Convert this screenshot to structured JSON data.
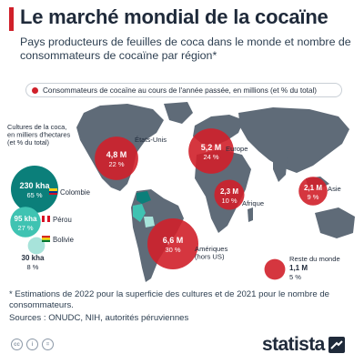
{
  "header": {
    "title": "Le marché mondial de la cocaïne",
    "subtitle": "Pays producteurs de feuilles de coca dans le monde et nombre de consommateurs de cocaïne par région*"
  },
  "legend": {
    "consumers_label": "Consommateurs de cocaïne au cours de l'année passée, en millions (et % du total)"
  },
  "colors": {
    "consumer": "#d0202a",
    "producer_dark": "#0b7f7a",
    "producer_mid": "#3fc3b2",
    "producer_light": "#a7e3da",
    "map": "#5f6b78",
    "brand": "#1f2a3a"
  },
  "chart_data": {
    "type": "bubble-map",
    "consumers": {
      "label": "Consommateurs de cocaïne au cours de l'année passée, en millions (et % du total)",
      "regions": [
        {
          "region": "États-Unis",
          "value_label": "4,8 M",
          "value": 4.8,
          "pct_label": "22 %"
        },
        {
          "region": "Europe",
          "value_label": "5,2 M",
          "value": 5.2,
          "pct_label": "24 %"
        },
        {
          "region": "Afrique",
          "value_label": "2,3 M",
          "value": 2.3,
          "pct_label": "10 %"
        },
        {
          "region": "Asie",
          "value_label": "2,1 M",
          "value": 2.1,
          "pct_label": "9 %"
        },
        {
          "region": "Amériques\n(hors US)",
          "value_label": "6,6 M",
          "value": 6.6,
          "pct_label": "30 %"
        },
        {
          "region": "Reste du monde",
          "value_label": "1,1 M",
          "value": 1.1,
          "pct_label": "5 %"
        }
      ]
    },
    "producers": {
      "label": "Cultures de la coca,\nen milliers d'hectares\n(et % du total)",
      "countries": [
        {
          "country": "Colombie",
          "value_label": "230 kha",
          "value": 230,
          "pct_label": "65 %"
        },
        {
          "country": "Pérou",
          "value_label": "95 kha",
          "value": 95,
          "pct_label": "27 %"
        },
        {
          "country": "Bolivie",
          "value_label": "30 kha",
          "value": 30,
          "pct_label": "8 %"
        }
      ]
    }
  },
  "footer": {
    "footnote": "* Estimations de 2022 pour la superficie des cultures et de 2021 pour le nombre de consommateurs.",
    "sources": "Sources : ONUDC, NIH, autorités péruviennes",
    "license_icons": [
      "cc-icon",
      "by-icon",
      "equals-icon"
    ],
    "brand": "statista"
  }
}
